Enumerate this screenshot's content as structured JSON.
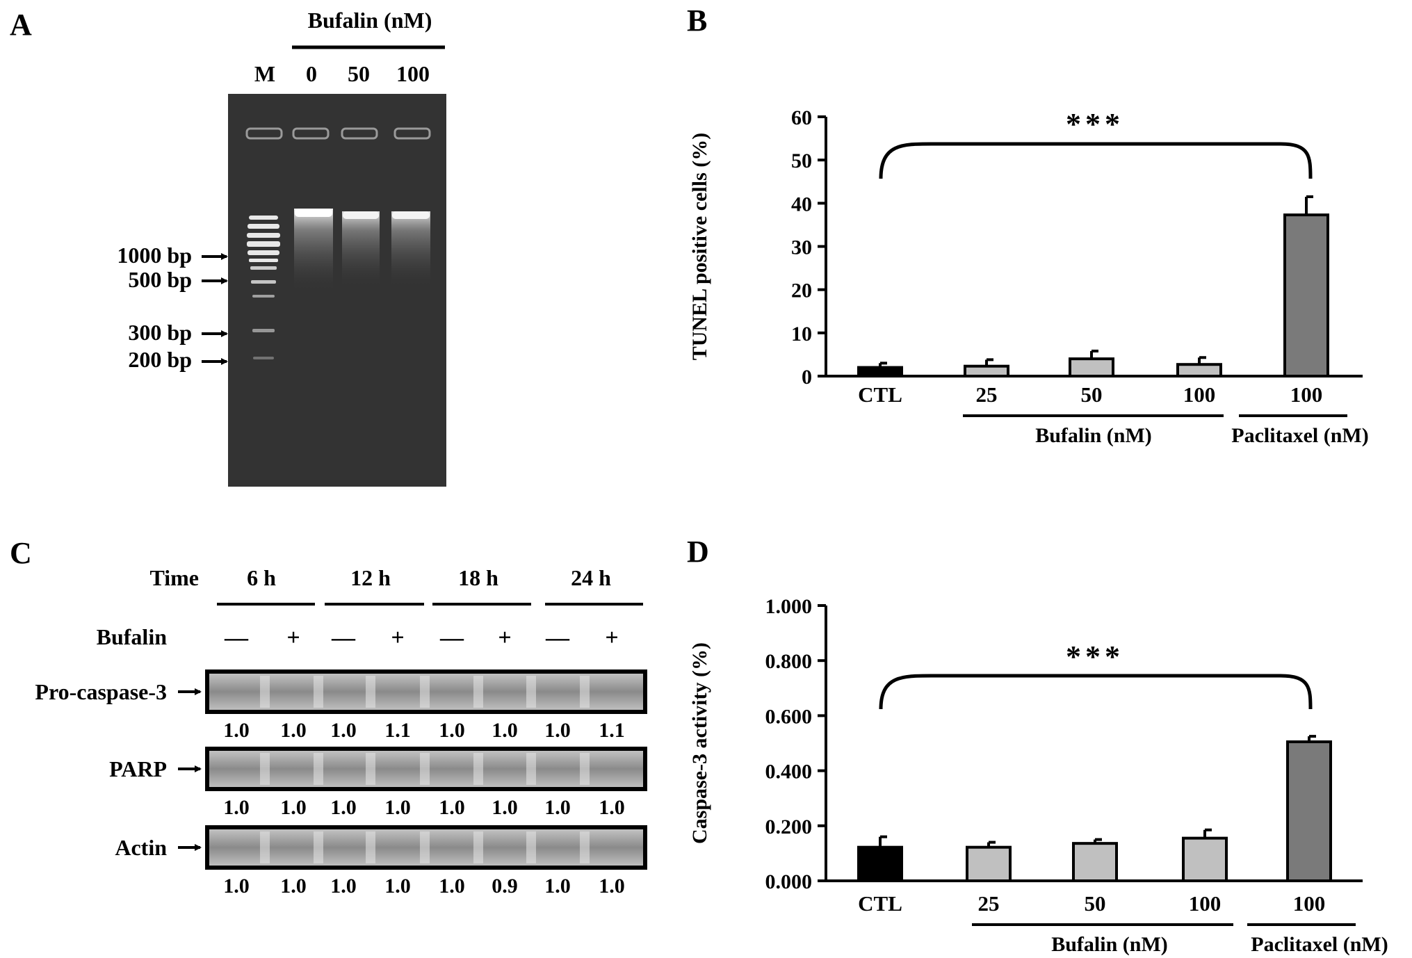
{
  "colors": {
    "ctl_bar": "#000000",
    "bufalin_bar": "#c0c0c0",
    "paclitaxel_bar": "#7a7a7a",
    "gel_background": "#333333",
    "band": "#ffffff"
  },
  "panelA": {
    "letter": "A",
    "group_label": "Bufalin (nM)",
    "lanes": [
      "M",
      "0",
      "50",
      "100"
    ],
    "markers": [
      "1000 bp",
      "500 bp",
      "300 bp",
      "200 bp"
    ]
  },
  "panelB": {
    "letter": "B",
    "significance": "***",
    "group_labels": [
      "Bufalin (nM)",
      "Paclitaxel (nM)"
    ]
  },
  "panelC": {
    "letter": "C",
    "time_label": "Time",
    "times": [
      "6 h",
      "12 h",
      "18 h",
      "24 h"
    ],
    "treatment_label": "Bufalin",
    "treatment_signs": [
      "—",
      "+",
      "—",
      "+",
      "—",
      "+",
      "—",
      "+"
    ],
    "blots": [
      {
        "label": "Pro-caspase-3",
        "values": [
          "1.0",
          "1.0",
          "1.0",
          "1.1",
          "1.0",
          "1.0",
          "1.0",
          "1.1"
        ]
      },
      {
        "label": "PARP",
        "values": [
          "1.0",
          "1.0",
          "1.0",
          "1.0",
          "1.0",
          "1.0",
          "1.0",
          "1.0"
        ]
      },
      {
        "label": "Actin",
        "values": [
          "1.0",
          "1.0",
          "1.0",
          "1.0",
          "1.0",
          "0.9",
          "1.0",
          "1.0"
        ]
      }
    ]
  },
  "panelD": {
    "letter": "D",
    "significance": "***",
    "group_labels": [
      "Bufalin (nM)",
      "Paclitaxel (nM)"
    ]
  },
  "chart_data": [
    {
      "panel": "B",
      "type": "bar",
      "categories": [
        "CTL",
        "25",
        "50",
        "100",
        "100"
      ],
      "values": [
        2.0,
        2.3,
        4.0,
        2.7,
        37.3
      ],
      "errors": [
        1.0,
        1.5,
        1.8,
        1.6,
        4.2
      ],
      "ylabel": "TUNEL positive cells (%)",
      "ylim": [
        0,
        60
      ],
      "yticks": [
        "0",
        "10",
        "20",
        "30",
        "40",
        "50",
        "60"
      ],
      "grid": false
    },
    {
      "panel": "D",
      "type": "bar",
      "categories": [
        "CTL",
        "25",
        "50",
        "100",
        "100"
      ],
      "values": [
        0.122,
        0.122,
        0.136,
        0.155,
        0.505
      ],
      "errors": [
        0.038,
        0.018,
        0.014,
        0.03,
        0.02
      ],
      "ylabel": "Caspase-3 activity (%)",
      "ylim": [
        0,
        1.0
      ],
      "yticks": [
        "0.000",
        "0.200",
        "0.400",
        "0.600",
        "0.800",
        "1.000"
      ],
      "grid": false
    }
  ]
}
